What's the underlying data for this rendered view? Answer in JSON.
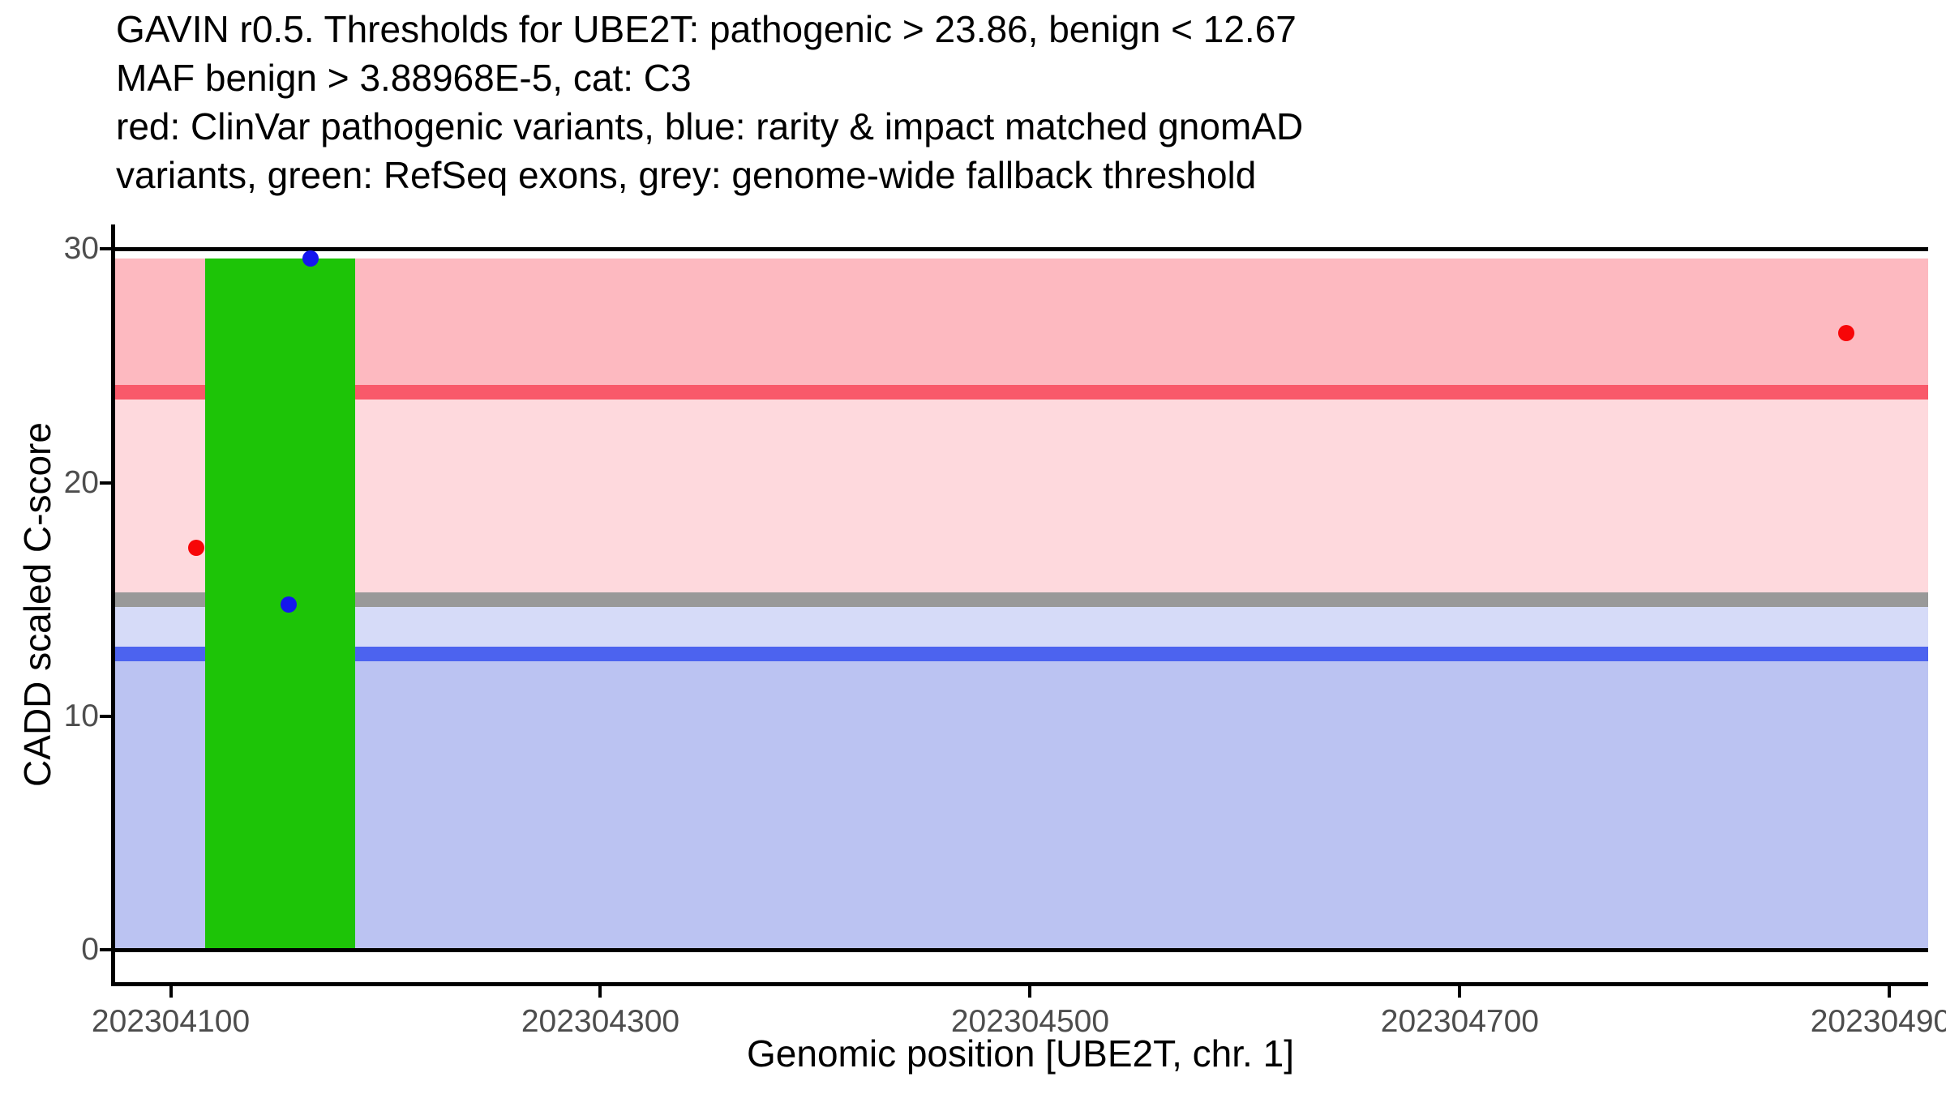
{
  "chart_data": {
    "type": "scatter",
    "title_lines": [
      "GAVIN r0.5. Thresholds for UBE2T: pathogenic > 23.86, benign < 12.67",
      "MAF benign > 3.88968E-5, cat: C3",
      "red: ClinVar pathogenic variants, blue: rarity & impact matched gnomAD",
      "variants, green: RefSeq exons, grey: genome-wide fallback threshold"
    ],
    "gavin_version": "r0.5",
    "gene": "UBE2T",
    "chromosome": "1",
    "pathogenic_threshold": 23.86,
    "benign_threshold": 12.67,
    "genome_wide_fallback_threshold": 15,
    "maf_benign": "3.88968E-5",
    "category": "C3",
    "xlabel": "Genomic position [UBE2T, chr. 1]",
    "ylabel": "CADD scaled C-score",
    "xlim": [
      202304073,
      202304918
    ],
    "ylim": [
      -1.51,
      31.05
    ],
    "grid": false,
    "legend_position": "none",
    "x_ticks": {
      "values": [
        202304100,
        202304300,
        202304500,
        202304700,
        202304900
      ],
      "labels": [
        "202304100",
        "202304300",
        "202304500",
        "202304700",
        "202304900"
      ]
    },
    "y_ticks": {
      "values": [
        0,
        10,
        20,
        30
      ],
      "labels": [
        "0",
        "10",
        "20",
        "30"
      ]
    },
    "band_top": 29.6,
    "regions": [
      {
        "name": "pathogenic-zone",
        "ymin": 23.86,
        "ymax": 29.6,
        "color": "#FDB9C0"
      },
      {
        "name": "uncertain-upper-zone",
        "ymin": 15,
        "ymax": 23.86,
        "color": "#FED9DD"
      },
      {
        "name": "uncertain-lower-zone",
        "ymin": 12.67,
        "ymax": 15,
        "color": "#D6DBF8"
      },
      {
        "name": "benign-zone",
        "ymin": 0,
        "ymax": 12.67,
        "color": "#BBC3F2"
      }
    ],
    "threshold_lines": [
      {
        "name": "pathogenic-threshold-line",
        "y": 23.86,
        "color": "#F9596A",
        "label": "pathogenic > 23.86"
      },
      {
        "name": "genome-wide-fallback-line",
        "y": 15,
        "color": "#999999",
        "label": "genome-wide fallback threshold"
      },
      {
        "name": "benign-threshold-line",
        "y": 12.67,
        "color": "#4C63EF",
        "label": "benign < 12.67"
      }
    ],
    "exon": {
      "name": "refseq-exon",
      "xmin": 202304116,
      "xmax": 202304186,
      "ymin": 0,
      "ymax": 29.6,
      "color": "#1DC407",
      "label": "RefSeq exon"
    },
    "rules": [
      {
        "name": "top-rule",
        "y": 30,
        "color": "#000000"
      },
      {
        "name": "bottom-rule",
        "y": 0,
        "color": "#000000"
      }
    ],
    "series": [
      {
        "name": "ClinVar pathogenic variants",
        "color": "#F70608",
        "points": [
          {
            "x": 202304112,
            "y": 17.2
          },
          {
            "x": 202304880,
            "y": 26.4
          }
        ]
      },
      {
        "name": "rarity & impact matched gnomAD variants",
        "color": "#1416EE",
        "points": [
          {
            "x": 202304165,
            "y": 29.6
          },
          {
            "x": 202304155,
            "y": 14.8
          }
        ]
      }
    ],
    "axis_color": "#000000",
    "tick_label_color": "#4D4D4D"
  }
}
